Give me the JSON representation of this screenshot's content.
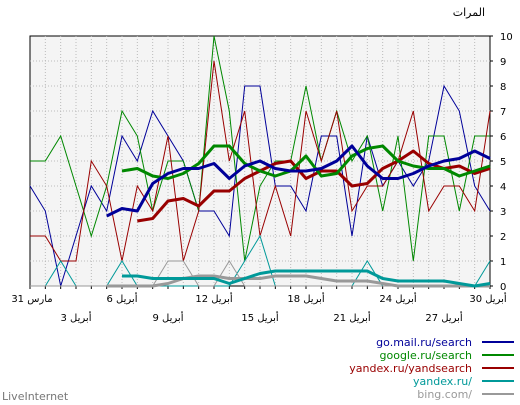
{
  "chart_data": {
    "type": "line",
    "ylabel": "المرات",
    "ylim": [
      0,
      10
    ],
    "y_ticks": [
      "0",
      "1",
      "2",
      "3",
      "4",
      "5",
      "6",
      "7",
      "8",
      "9",
      "10"
    ],
    "grid": true,
    "plot_background": "#f4f4f4",
    "x_days": 31,
    "x_ticks_upper": [
      {
        "label": "30 أبريل",
        "day": 0
      },
      {
        "label": "24 أبريل",
        "day": 6
      },
      {
        "label": "18 أبريل",
        "day": 12
      },
      {
        "label": "12 أبريل",
        "day": 18
      },
      {
        "label": "6 أبريل",
        "day": 24
      },
      {
        "label": "31 مارس",
        "day": 30
      }
    ],
    "x_ticks_lower": [
      {
        "label": "27 أبريل",
        "day": 3
      },
      {
        "label": "21 أبريل",
        "day": 9
      },
      {
        "label": "15 أبريل",
        "day": 15
      },
      {
        "label": "9 أبريل",
        "day": 21
      },
      {
        "label": "3 أبريل",
        "day": 27
      }
    ],
    "thin_series": [
      {
        "name": "go.mail.ru/search",
        "color": "#000099",
        "values": [
          3,
          4,
          7,
          8,
          5,
          4,
          5,
          4,
          6,
          2,
          6,
          6,
          3,
          4,
          4,
          8,
          8,
          2,
          3,
          3,
          5,
          6,
          7,
          5,
          6,
          3,
          4,
          2,
          0,
          3,
          4
        ]
      },
      {
        "name": "google.ru/search",
        "color": "#008800",
        "values": [
          6,
          6,
          3,
          6,
          6,
          1,
          6,
          3,
          6,
          5,
          7,
          5,
          8,
          5,
          5,
          4,
          1,
          7,
          10,
          3,
          5,
          5,
          3,
          6,
          7,
          4,
          2,
          4,
          6,
          5,
          5
        ]
      },
      {
        "name": "yandex.ru/yandsearch",
        "color": "#990000",
        "values": [
          7,
          3,
          4,
          4,
          3,
          7,
          5,
          4,
          4,
          3,
          7,
          5,
          7,
          2,
          4,
          2,
          7,
          5,
          9,
          3,
          1,
          6,
          3,
          4,
          1,
          4,
          5,
          1,
          1,
          2,
          2
        ]
      },
      {
        "name": "yandex.ru/",
        "color": "#009999",
        "values": [
          1,
          0,
          0,
          0,
          0,
          0,
          0,
          0,
          1,
          0,
          0,
          0,
          0,
          0,
          0,
          2,
          1,
          0,
          0,
          0,
          0,
          0,
          0,
          0,
          1,
          0,
          0,
          0,
          1,
          0,
          0
        ]
      },
      {
        "name": "bing.com/",
        "color": "#999999",
        "values": [
          0,
          0,
          0,
          0,
          0,
          0,
          0,
          0,
          0,
          0,
          0,
          0,
          0,
          0,
          0,
          0,
          0,
          1,
          0,
          0,
          1,
          1,
          0,
          0,
          0,
          0,
          0,
          0,
          0,
          0,
          0
        ]
      }
    ],
    "avg_series": [
      {
        "name": "go.mail.ru/search",
        "color": "#000099",
        "values": [
          5.1,
          5.4,
          5.1,
          5.0,
          4.8,
          4.5,
          4.3,
          4.3,
          4.8,
          5.6,
          5.0,
          4.7,
          4.6,
          4.6,
          4.7,
          5.0,
          4.8,
          4.3,
          4.9,
          4.7,
          4.7,
          4.5,
          4.1,
          3.0,
          3.1,
          2.8
        ]
      },
      {
        "name": "google.ru/search",
        "color": "#008800",
        "values": [
          4.8,
          4.6,
          4.4,
          4.7,
          4.7,
          4.8,
          5.0,
          5.6,
          5.5,
          5.2,
          4.5,
          4.4,
          5.2,
          4.6,
          4.4,
          4.6,
          4.9,
          5.6,
          5.6,
          4.9,
          4.5,
          4.3,
          4.4,
          4.7,
          4.6
        ]
      },
      {
        "name": "yandex.ru/yandsearch",
        "color": "#990000",
        "values": [
          4.7,
          4.5,
          4.8,
          4.7,
          4.9,
          5.4,
          5.0,
          4.7,
          4.1,
          4.0,
          4.6,
          4.6,
          4.3,
          5.0,
          4.9,
          4.6,
          4.3,
          3.8,
          3.8,
          3.2,
          3.5,
          3.4,
          2.7,
          2.6
        ]
      },
      {
        "name": "yandex.ru/",
        "color": "#009999",
        "values": [
          0.1,
          0,
          0.1,
          0.2,
          0.2,
          0.2,
          0.2,
          0.3,
          0.6,
          0.6,
          0.6,
          0.6,
          0.6,
          0.6,
          0.6,
          0.5,
          0.3,
          0.1,
          0.3,
          0.3,
          0.3,
          0.3,
          0.3,
          0.4,
          0.4
        ]
      },
      {
        "name": "bing.com/",
        "color": "#999999",
        "values": [
          0,
          0,
          0,
          0,
          0,
          0,
          0,
          0.1,
          0.2,
          0.2,
          0.2,
          0.3,
          0.4,
          0.4,
          0.4,
          0.3,
          0.3,
          0.3,
          0.4,
          0.4,
          0.3,
          0.1,
          0,
          0,
          0,
          0
        ]
      }
    ],
    "legend_position": "bottom-right"
  },
  "legend": [
    {
      "label": "go.mail.ru/search",
      "color": "#000099"
    },
    {
      "label": "google.ru/search",
      "color": "#008800"
    },
    {
      "label": "yandex.ru/yandsearch",
      "color": "#990000"
    },
    {
      "label": "yandex.ru/",
      "color": "#009999"
    },
    {
      "label": "bing.com/",
      "color": "#999999"
    }
  ],
  "footer": {
    "brand": "LiveInternet"
  }
}
